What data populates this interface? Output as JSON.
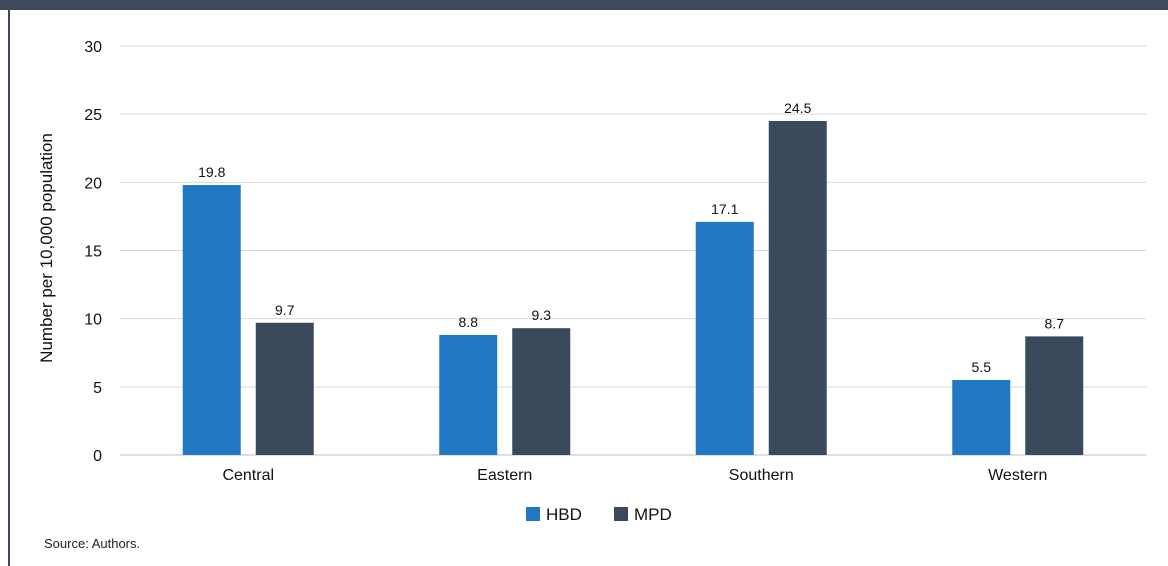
{
  "chart_data": {
    "type": "bar",
    "categories": [
      "Central",
      "Eastern",
      "Southern",
      "Western"
    ],
    "series": [
      {
        "name": "HBD",
        "values": [
          19.8,
          8.8,
          17.1,
          5.5
        ],
        "color": "#1f78c1"
      },
      {
        "name": "MPD",
        "values": [
          9.7,
          9.3,
          24.5,
          8.7
        ],
        "color": "#3a4a5c"
      }
    ],
    "value_labels": {
      "HBD": [
        "19.8",
        "8.8",
        "17.1",
        "5.5"
      ],
      "MPD": [
        "9.7",
        "9.3",
        "24.5",
        "8.7"
      ]
    },
    "ylabel": "Number per 10,000 population",
    "ylim": [
      0,
      30
    ],
    "yticks": [
      "0",
      "5",
      "10",
      "15",
      "20",
      "25",
      "30"
    ],
    "grid": true,
    "legend_position": "bottom-center"
  },
  "source_note": "Source: Authors.",
  "colors": {
    "frame": "#3d4a5a",
    "grid": "#d9d9d9"
  }
}
